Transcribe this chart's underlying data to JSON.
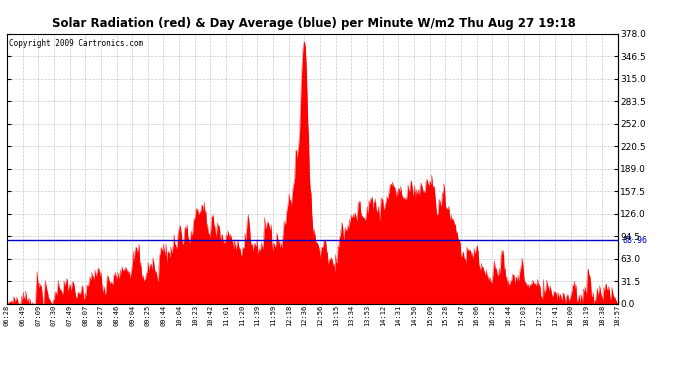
{
  "title": "Solar Radiation (red) & Day Average (blue) per Minute W/m2 Thu Aug 27 19:18",
  "copyright": "Copyright 2009 Cartronics.com",
  "ymin": 0.0,
  "ymax": 378.0,
  "ytick_interval": 31.5,
  "day_average": 88.96,
  "day_average_label": "88.96",
  "fill_color": "#ff0000",
  "line_color": "#0000cc",
  "background_color": "#ffffff",
  "grid_color": "#bbbbbb",
  "x_labels": [
    "06:28",
    "06:49",
    "07:09",
    "07:30",
    "07:49",
    "08:07",
    "08:27",
    "08:46",
    "09:04",
    "09:25",
    "09:44",
    "10:04",
    "10:23",
    "10:42",
    "11:01",
    "11:20",
    "11:39",
    "11:59",
    "12:18",
    "12:36",
    "12:56",
    "13:15",
    "13:34",
    "13:53",
    "14:12",
    "14:31",
    "14:50",
    "15:09",
    "15:28",
    "15:47",
    "16:06",
    "16:25",
    "16:44",
    "17:03",
    "17:22",
    "17:41",
    "18:00",
    "18:19",
    "18:38",
    "18:57"
  ]
}
